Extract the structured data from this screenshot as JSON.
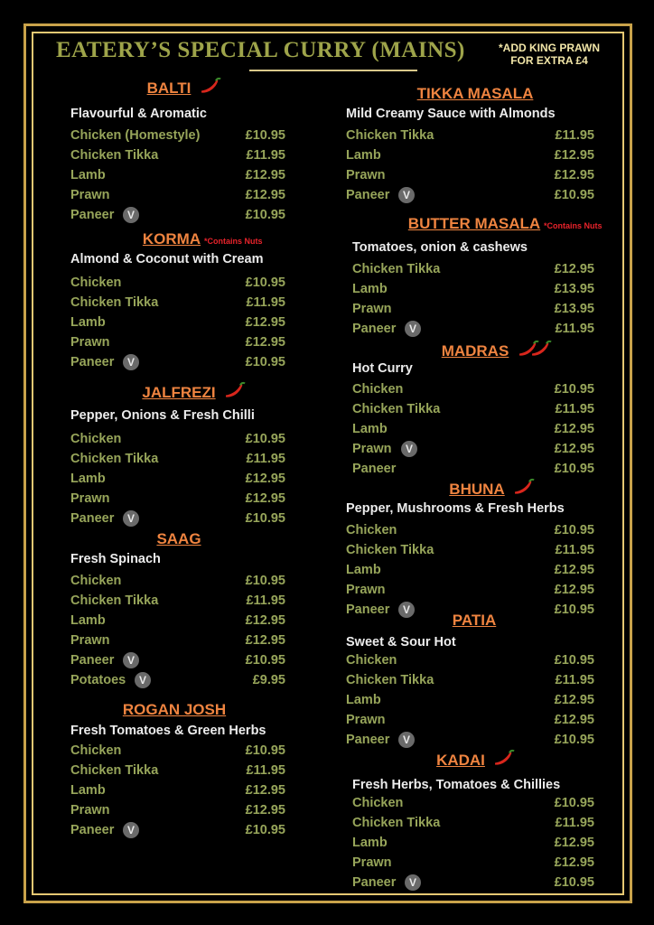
{
  "header": {
    "title": "EATERY’S SPECIAL CURRY (MAINS)",
    "note_line1": "*ADD KING PRAWN",
    "note_line2": "FOR EXTRA £4"
  },
  "columns": [
    {
      "sections": [
        {
          "name": "BALTI",
          "chillies": 1,
          "subtitle": "Flavourful & Aromatic",
          "items": [
            {
              "name": "Chicken (Homestyle)",
              "price": "£10.95"
            },
            {
              "name": "Chicken Tikka",
              "price": "£11.95"
            },
            {
              "name": "Lamb",
              "price": "£12.95"
            },
            {
              "name": "Prawn",
              "price": "£12.95"
            },
            {
              "name": "Paneer",
              "badge": "V",
              "price": "£10.95"
            }
          ]
        },
        {
          "name": "KORMA",
          "note": "*Contains Nuts",
          "subtitle": "Almond & Coconut with Cream",
          "items": [
            {
              "name": "Chicken",
              "price": "£10.95"
            },
            {
              "name": "Chicken Tikka",
              "price": "£11.95"
            },
            {
              "name": "Lamb",
              "price": "£12.95"
            },
            {
              "name": "Prawn",
              "price": "£12.95"
            },
            {
              "name": "Paneer",
              "badge": "V",
              "price": "£10.95"
            }
          ]
        },
        {
          "name": "JALFREZI",
          "chillies": 1,
          "subtitle": "Pepper, Onions & Fresh Chilli",
          "items": [
            {
              "name": "Chicken",
              "price": "£10.95"
            },
            {
              "name": "Chicken Tikka",
              "price": "£11.95"
            },
            {
              "name": "Lamb",
              "price": "£12.95"
            },
            {
              "name": "Prawn",
              "price": "£12.95"
            },
            {
              "name": "Paneer",
              "badge": "V",
              "price": "£10.95"
            }
          ]
        },
        {
          "name": "SAAG",
          "subtitle": "Fresh Spinach",
          "items": [
            {
              "name": "Chicken",
              "price": "£10.95"
            },
            {
              "name": "Chicken Tikka",
              "price": "£11.95"
            },
            {
              "name": "Lamb",
              "price": "£12.95"
            },
            {
              "name": "Prawn",
              "price": "£12.95"
            },
            {
              "name": "Paneer",
              "badge": "V",
              "price": "£10.95"
            },
            {
              "name": "Potatoes",
              "badge": "V",
              "price": "£9.95"
            }
          ]
        },
        {
          "name": "ROGAN JOSH",
          "subtitle": "Fresh Tomatoes & Green Herbs",
          "items": [
            {
              "name": "Chicken",
              "price": "£10.95"
            },
            {
              "name": "Chicken Tikka",
              "price": "£11.95"
            },
            {
              "name": "Lamb",
              "price": "£12.95"
            },
            {
              "name": "Prawn",
              "price": "£12.95"
            },
            {
              "name": "Paneer",
              "badge": "V",
              "price": "£10.95"
            }
          ]
        }
      ]
    },
    {
      "sections": [
        {
          "name": "TIKKA MASALA",
          "subtitle": "Mild Creamy Sauce with Almonds",
          "items": [
            {
              "name": "Chicken Tikka",
              "price": "£11.95"
            },
            {
              "name": "Lamb",
              "price": "£12.95"
            },
            {
              "name": "Prawn",
              "price": "£12.95"
            },
            {
              "name": "Paneer",
              "badge": "V",
              "price": "£10.95"
            }
          ]
        },
        {
          "name": "BUTTER MASALA",
          "note": "*Contains Nuts",
          "subtitle": "Tomatoes, onion & cashews",
          "items": [
            {
              "name": "Chicken Tikka",
              "price": "£12.95"
            },
            {
              "name": "Lamb",
              "price": "£13.95"
            },
            {
              "name": "Prawn",
              "price": "£13.95"
            },
            {
              "name": "Paneer",
              "badge": "V",
              "price": "£11.95"
            }
          ]
        },
        {
          "name": "MADRAS",
          "chillies": 2,
          "subtitle": "Hot Curry",
          "items": [
            {
              "name": "Chicken",
              "price": "£10.95"
            },
            {
              "name": "Chicken Tikka",
              "price": "£11.95"
            },
            {
              "name": "Lamb",
              "price": "£12.95"
            },
            {
              "name": "Prawn",
              "badge": "V",
              "price": "£12.95"
            },
            {
              "name": "Paneer",
              "price": "£10.95"
            }
          ]
        },
        {
          "name": "BHUNA",
          "chillies": 1,
          "subtitle": "Pepper, Mushrooms & Fresh Herbs",
          "items": [
            {
              "name": "Chicken",
              "price": "£10.95"
            },
            {
              "name": "Chicken Tikka",
              "price": "£11.95"
            },
            {
              "name": "Lamb",
              "price": "£12.95"
            },
            {
              "name": "Prawn",
              "price": "£12.95"
            },
            {
              "name": "Paneer",
              "badge": "V",
              "price": "£10.95"
            }
          ]
        },
        {
          "name": "PATIA",
          "subtitle": "Sweet & Sour Hot",
          "items": [
            {
              "name": "Chicken",
              "price": "£10.95"
            },
            {
              "name": "Chicken Tikka",
              "price": "£11.95"
            },
            {
              "name": "Lamb",
              "price": "£12.95"
            },
            {
              "name": "Prawn",
              "price": "£12.95"
            },
            {
              "name": "Paneer",
              "badge": "V",
              "price": "£10.95"
            }
          ]
        },
        {
          "name": "KADAI",
          "chillies": 1,
          "subtitle": "Fresh Herbs, Tomatoes & Chillies",
          "items": [
            {
              "name": "Chicken",
              "price": "£10.95"
            },
            {
              "name": "Chicken Tikka",
              "price": "£11.95"
            },
            {
              "name": "Lamb",
              "price": "£12.95"
            },
            {
              "name": "Prawn",
              "price": "£12.95"
            },
            {
              "name": "Paneer",
              "badge": "V",
              "price": "£10.95"
            }
          ]
        }
      ]
    }
  ]
}
